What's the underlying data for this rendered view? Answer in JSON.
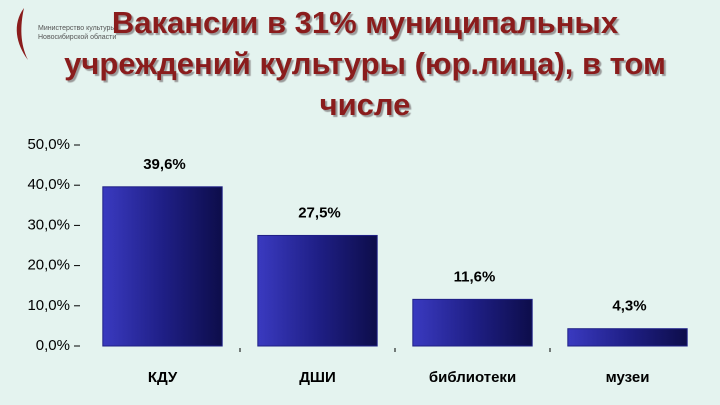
{
  "logo": {
    "text": "Министерство культуры Новосибирской области"
  },
  "chart_data": {
    "type": "bar",
    "title": "Вакансии в 31% муниципальных учреждений культуры (юр.лица), в том числе",
    "categories": [
      "КДУ",
      "ДШИ",
      "библиотеки",
      "музеи"
    ],
    "values": [
      39.6,
      27.5,
      11.6,
      4.3
    ],
    "value_labels": [
      "39,6%",
      "27,5%",
      "11,6%",
      "4,3%"
    ],
    "color": "#1f1f86",
    "ylim": [
      0,
      50
    ],
    "yticks": [
      {
        "value": 0,
        "label": "0,0%"
      },
      {
        "value": 10,
        "label": "10,0%"
      },
      {
        "value": 20,
        "label": "20,0%"
      },
      {
        "value": 30,
        "label": "30,0%"
      },
      {
        "value": 40,
        "label": "40,0%"
      },
      {
        "value": 50,
        "label": "50,0%"
      }
    ],
    "grid": false
  }
}
